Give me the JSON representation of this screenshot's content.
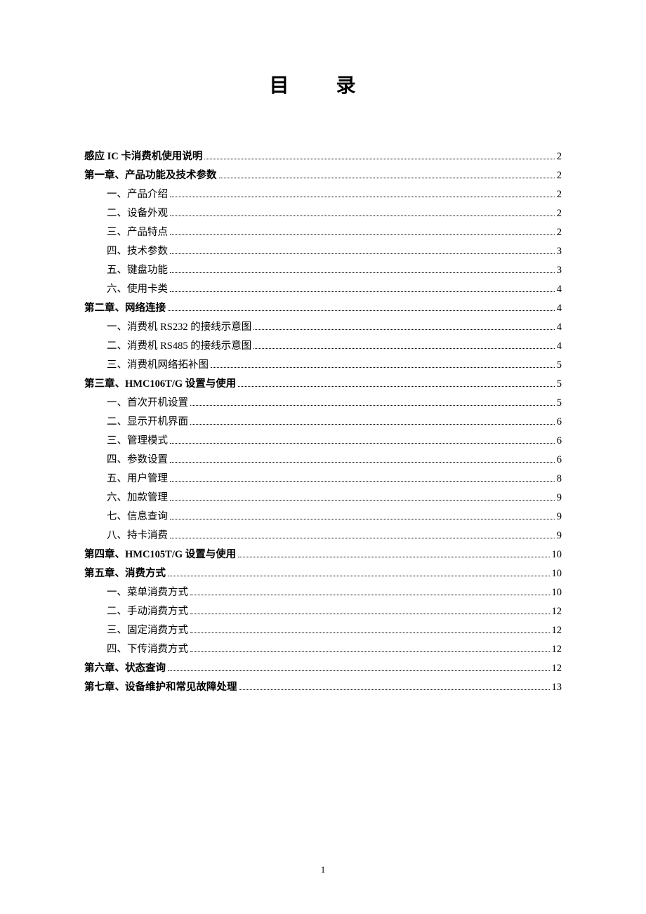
{
  "title": "目 录",
  "page_number": "1",
  "entries": [
    {
      "level": 0,
      "label": "感应 IC 卡消费机使用说明",
      "page": "2"
    },
    {
      "level": 0,
      "label": "第一章、产品功能及技术参数",
      "page": "2"
    },
    {
      "level": 1,
      "label": "一、产品介绍",
      "page": "2"
    },
    {
      "level": 1,
      "label": "二、设备外观",
      "page": "2"
    },
    {
      "level": 1,
      "label": "三、产品特点",
      "page": "2"
    },
    {
      "level": 1,
      "label": "四、技术参数",
      "page": "3"
    },
    {
      "level": 1,
      "label": "五、键盘功能",
      "page": "3"
    },
    {
      "level": 1,
      "label": "六、使用卡类",
      "page": "4"
    },
    {
      "level": 0,
      "label": "第二章、网络连接",
      "page": "4"
    },
    {
      "level": 1,
      "label": "一、消费机 RS232 的接线示意图",
      "page": "4"
    },
    {
      "level": 1,
      "label": "二、消费机 RS485 的接线示意图",
      "page": "4"
    },
    {
      "level": 1,
      "label": "三、消费机网络拓补图",
      "page": "5"
    },
    {
      "level": 0,
      "label": "第三章、HMC106T/G 设置与使用",
      "page": "5"
    },
    {
      "level": 1,
      "label": "一、首次开机设置",
      "page": "5"
    },
    {
      "level": 1,
      "label": "二、显示开机界面",
      "page": "6"
    },
    {
      "level": 1,
      "label": "三、管理模式",
      "page": "6"
    },
    {
      "level": 1,
      "label": "四、参数设置",
      "page": "6"
    },
    {
      "level": 1,
      "label": "五、用户管理",
      "page": "8"
    },
    {
      "level": 1,
      "label": "六、加款管理",
      "page": "9"
    },
    {
      "level": 1,
      "label": "七、信息查询",
      "page": "9"
    },
    {
      "level": 1,
      "label": "八、持卡消费",
      "page": "9"
    },
    {
      "level": 0,
      "label": "第四章、HMC105T/G 设置与使用",
      "page": "10"
    },
    {
      "level": 0,
      "label": "第五章、消费方式",
      "page": "10"
    },
    {
      "level": 1,
      "label": "一、菜单消费方式",
      "page": "10"
    },
    {
      "level": 1,
      "label": "二、手动消费方式",
      "page": "12"
    },
    {
      "level": 1,
      "label": "三、固定消费方式",
      "page": "12"
    },
    {
      "level": 1,
      "label": "四、下传消费方式",
      "page": "12"
    },
    {
      "level": 0,
      "label": "第六章、状态查询",
      "page": "12"
    },
    {
      "level": 0,
      "label": "第七章、设备维护和常见故障处理",
      "page": "13"
    }
  ]
}
